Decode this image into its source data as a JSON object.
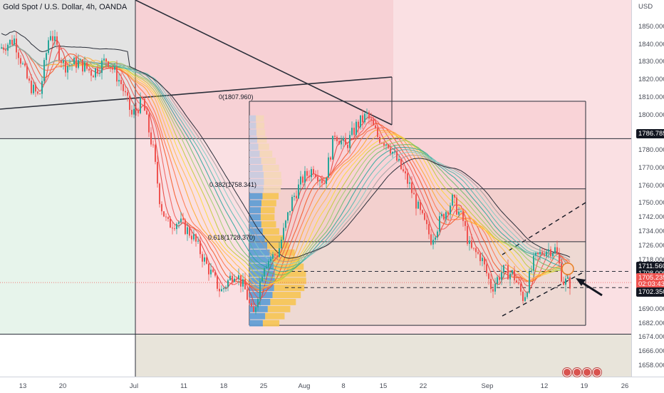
{
  "title": "Gold Spot / U.S. Dollar, 4h, OANDA",
  "currency": "USD",
  "chart_data": {
    "type": "candlestick",
    "symbol": "XAUUSD",
    "interval": "4h",
    "ylim": [
      1652,
      1868
    ],
    "yticks": [
      1850,
      1840,
      1830,
      1820,
      1810,
      1800,
      1790,
      1780,
      1770,
      1760,
      1750,
      1742,
      1734,
      1726,
      1718,
      1710,
      1700,
      1690,
      1682,
      1674,
      1666,
      1658
    ],
    "xticks": [
      "13",
      "20",
      "Jul",
      "11",
      "18",
      "25",
      "Aug",
      "8",
      "15",
      "22",
      "Sep",
      "12",
      "19",
      "26"
    ],
    "price_labels": [
      {
        "text": "1786.785",
        "value": 1786.785,
        "bg": "#131722",
        "fg": "#ffffff"
      },
      {
        "text": "1711.560",
        "value": 1711.56,
        "bg": "#131722",
        "fg": "#ffffff"
      },
      {
        "text": "1708.000",
        "value": 1708.0,
        "bg": "#131722",
        "fg": "#ffffff"
      },
      {
        "text": "1705.235",
        "value": 1705.235,
        "bg": "#ef5350",
        "fg": "#ffffff"
      },
      {
        "text": "02:03:43",
        "value": 1703.0,
        "bg": "#ef5350",
        "fg": "#ffffff"
      },
      {
        "text": "1702.350",
        "value": 1702.35,
        "bg": "#131722",
        "fg": "#ffffff"
      }
    ],
    "fib_levels": [
      {
        "label": "0(1807.960)",
        "value": 1807.96
      },
      {
        "label": "0.382(1758.341)",
        "value": 1758.341
      },
      {
        "label": "0.618(1728.370)",
        "value": 1728.37
      }
    ],
    "fib_low": 1681.0,
    "horizontal_lines": [
      1786.785,
      1676.0
    ],
    "dashed_lines": [
      1711.56,
      1702.35
    ],
    "current_price": 1705.235,
    "colors": {
      "up": "#26a69a",
      "down": "#ef5350",
      "pink": "#f8d6d9",
      "grey": "#d9d9d9",
      "green": "#e4f3e9",
      "tan": "#e6e1d6",
      "blue": "#5b9bd5",
      "yellow": "#f6c453"
    }
  }
}
